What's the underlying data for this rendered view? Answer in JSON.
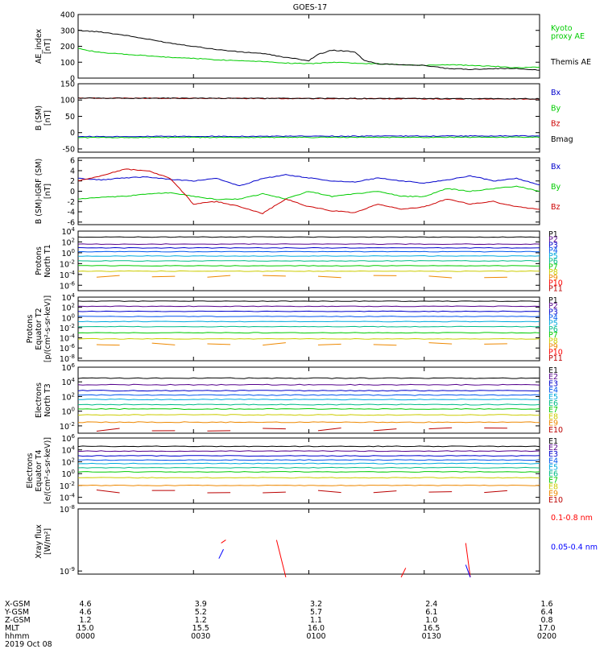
{
  "title": "GOES-17",
  "chart_data": [
    {
      "id": "ae",
      "type": "line",
      "ylabel": "AE_index\n[nT]",
      "yticks": [
        400,
        300,
        200,
        100,
        0
      ],
      "ylim": [
        0,
        400
      ],
      "yscale": "linear",
      "series": [
        {
          "name": "Kyoto\nproxy AE",
          "color": "#00cc00",
          "x": [
            0,
            0.02,
            0.05,
            0.1,
            0.15,
            0.2,
            0.25,
            0.3,
            0.35,
            0.4,
            0.45,
            0.5,
            0.55,
            0.6,
            0.65,
            0.7,
            0.75,
            0.8,
            0.85,
            0.9,
            0.95,
            1.0
          ],
          "values": [
            190,
            175,
            160,
            150,
            140,
            130,
            125,
            115,
            110,
            105,
            95,
            90,
            100,
            95,
            90,
            85,
            80,
            85,
            80,
            75,
            65,
            70
          ]
        },
        {
          "name": "Themis AE",
          "color": "#000000",
          "x": [
            0,
            0.05,
            0.1,
            0.15,
            0.2,
            0.25,
            0.3,
            0.35,
            0.4,
            0.45,
            0.5,
            0.52,
            0.55,
            0.58,
            0.6,
            0.62,
            0.65,
            0.7,
            0.75,
            0.8,
            0.85,
            0.9,
            0.95,
            1.0
          ],
          "values": [
            300,
            290,
            270,
            245,
            220,
            200,
            180,
            165,
            155,
            130,
            110,
            150,
            175,
            170,
            165,
            110,
            90,
            85,
            80,
            60,
            55,
            60,
            60,
            50
          ]
        }
      ]
    },
    {
      "id": "bsm",
      "type": "line",
      "ylabel": "B (SM)\n[nT]",
      "yticks": [
        150,
        100,
        50,
        0,
        -50
      ],
      "ylim": [
        -60,
        150
      ],
      "yscale": "linear",
      "series": [
        {
          "name": "Bx",
          "color": "#0000cc",
          "x": [
            0,
            1
          ],
          "values": [
            -12,
            -10
          ]
        },
        {
          "name": "By",
          "color": "#00cc00",
          "x": [
            0,
            1
          ],
          "values": [
            -15,
            -14
          ]
        },
        {
          "name": "Bz",
          "color": "#cc0000",
          "x": [
            0,
            1
          ],
          "values": [
            106,
            103
          ]
        },
        {
          "name": "Bmag",
          "color": "#000000",
          "x": [
            0,
            1
          ],
          "values": [
            106,
            104
          ]
        }
      ]
    },
    {
      "id": "bdiff",
      "type": "line",
      "ylabel": "B (SM)-IGRF (SM)\n[nT]",
      "yticks": [
        6,
        4,
        2,
        0,
        -2,
        -4,
        -6
      ],
      "ylim": [
        -6.5,
        6.5
      ],
      "yscale": "linear",
      "series": [
        {
          "name": "Bx",
          "color": "#0000cc",
          "x": [
            0,
            0.05,
            0.1,
            0.15,
            0.2,
            0.25,
            0.3,
            0.35,
            0.4,
            0.45,
            0.5,
            0.55,
            0.6,
            0.65,
            0.7,
            0.75,
            0.8,
            0.85,
            0.9,
            0.95,
            1.0
          ],
          "values": [
            2.5,
            2.2,
            2.6,
            2.8,
            2.3,
            2.0,
            2.5,
            1.0,
            2.5,
            3.2,
            2.6,
            2.0,
            1.8,
            2.6,
            2.0,
            1.6,
            2.2,
            3.0,
            2.0,
            2.5,
            1.2
          ]
        },
        {
          "name": "By",
          "color": "#00cc00",
          "x": [
            0,
            0.05,
            0.1,
            0.15,
            0.2,
            0.25,
            0.3,
            0.35,
            0.4,
            0.45,
            0.5,
            0.55,
            0.6,
            0.65,
            0.7,
            0.75,
            0.8,
            0.85,
            0.9,
            0.95,
            1.0
          ],
          "values": [
            -1.5,
            -1.2,
            -1.0,
            -0.5,
            -0.3,
            -1.0,
            -1.6,
            -1.5,
            -0.5,
            -1.5,
            0.0,
            -1.0,
            -0.5,
            0.0,
            -1.0,
            -1.0,
            0.5,
            0.0,
            0.5,
            1.0,
            0.0
          ]
        },
        {
          "name": "Bz",
          "color": "#cc0000",
          "x": [
            0,
            0.05,
            0.1,
            0.15,
            0.2,
            0.25,
            0.3,
            0.35,
            0.4,
            0.45,
            0.5,
            0.55,
            0.6,
            0.65,
            0.7,
            0.75,
            0.8,
            0.85,
            0.9,
            0.95,
            1.0
          ],
          "values": [
            2.0,
            3.0,
            4.3,
            4.0,
            2.5,
            -2.5,
            -2.0,
            -3.0,
            -4.3,
            -1.5,
            -3.0,
            -3.8,
            -4.2,
            -2.5,
            -3.5,
            -3.0,
            -1.5,
            -2.5,
            -2.0,
            -3.0,
            -3.5
          ]
        }
      ]
    },
    {
      "id": "pt1",
      "type": "line",
      "ylabel": "Protons\nNorth T1",
      "ytick_exponents": [
        4,
        2,
        0,
        -2,
        -4,
        -6
      ],
      "ylim_log": [
        -7,
        4
      ],
      "yscale": "log",
      "legend": [
        "P1",
        "P2",
        "P3",
        "P4",
        "P5",
        "P6",
        "P7",
        "P8",
        "P9",
        "P10",
        "P11"
      ],
      "level_exponents": [
        2.9,
        1.6,
        0.9,
        0.2,
        -0.6,
        -1.5,
        -2.4,
        -3.4
      ],
      "series_colors": [
        "#000000",
        "#55008c",
        "#0000cc",
        "#0055ee",
        "#00aadd",
        "#00bb88",
        "#00cc00",
        "#cccc00",
        "#ee8800",
        "#ff0000",
        "#bb0000"
      ]
    },
    {
      "id": "pt2",
      "type": "line",
      "ylabel": "Protons\nEquator T2\n[p/(cm²-s-sr-keV)]",
      "ytick_exponents": [
        4,
        2,
        0,
        -2,
        -4,
        -6,
        -8
      ],
      "ylim_log": [
        -8.5,
        4
      ],
      "yscale": "log",
      "legend": [
        "P1",
        "P2",
        "P3",
        "P4",
        "P5",
        "P6",
        "P7",
        "P8",
        "P9",
        "P10",
        "P11"
      ],
      "level_exponents": [
        3.2,
        2.2,
        1.2,
        0.2,
        -0.8,
        -1.8,
        -3.0,
        -4.2
      ],
      "series_colors": [
        "#000000",
        "#55008c",
        "#0000cc",
        "#0055ee",
        "#00aadd",
        "#00bb88",
        "#00cc00",
        "#cccc00",
        "#ee8800",
        "#ff0000",
        "#bb0000"
      ]
    },
    {
      "id": "et3",
      "type": "line",
      "ylabel": "Electrons\nNorth T3",
      "ytick_exponents": [
        6,
        4,
        2,
        0,
        -2
      ],
      "ylim_log": [
        -3,
        6
      ],
      "yscale": "log",
      "legend": [
        "E1",
        "E2",
        "E3",
        "E4",
        "E5",
        "E6",
        "E7",
        "E8",
        "E9",
        "E10"
      ],
      "level_exponents": [
        4.5,
        3.6,
        2.8,
        2.2,
        1.6,
        0.9,
        0.3,
        -0.5,
        -1.5
      ],
      "series_colors": [
        "#000000",
        "#55008c",
        "#0000cc",
        "#0055ee",
        "#00aadd",
        "#00bb88",
        "#00cc00",
        "#cccc00",
        "#ee8800",
        "#bb0000"
      ]
    },
    {
      "id": "et4",
      "type": "line",
      "ylabel": "Electrons\nEquator T4\n[e/(cm²-s-sr-keV)]",
      "ytick_exponents": [
        6,
        4,
        2,
        0,
        -2,
        -4
      ],
      "ylim_log": [
        -5,
        6
      ],
      "yscale": "log",
      "legend": [
        "E1",
        "E2",
        "E3",
        "E4",
        "E5",
        "E6",
        "E7",
        "E8",
        "E9",
        "E10"
      ],
      "level_exponents": [
        4.6,
        3.8,
        3.0,
        2.3,
        1.7,
        1.0,
        0.3,
        -0.7,
        -2.0
      ],
      "series_colors": [
        "#000000",
        "#55008c",
        "#0000cc",
        "#0055ee",
        "#00aadd",
        "#00bb88",
        "#00cc00",
        "#cccc00",
        "#ee8800",
        "#bb0000"
      ]
    },
    {
      "id": "xray",
      "type": "line",
      "ylabel": "Xray flux\n[W/m²]",
      "ytick_exponents": [
        -8,
        -9
      ],
      "ylim_log": [
        -9.05,
        -8
      ],
      "yscale": "log",
      "series": [
        {
          "name": "0.1-0.8 nm",
          "color": "#ff0000",
          "segments": [
            [
              [
                0.31,
                -8.55
              ],
              [
                0.32,
                -8.5
              ]
            ],
            [
              [
                0.43,
                -8.5
              ],
              [
                0.45,
                -9.1
              ]
            ],
            [
              [
                0.71,
                -8.95
              ],
              [
                0.7,
                -9.1
              ]
            ],
            [
              [
                0.84,
                -8.55
              ],
              [
                0.85,
                -9.1
              ]
            ]
          ]
        },
        {
          "name": "0.05-0.4 nm",
          "color": "#0000ff",
          "segments": [
            [
              [
                0.305,
                -8.8
              ],
              [
                0.315,
                -8.65
              ]
            ],
            [
              [
                0.84,
                -8.9
              ],
              [
                0.85,
                -9.1
              ]
            ]
          ]
        }
      ]
    }
  ],
  "right_labels": {
    "ae": [
      {
        "text": "Kyoto",
        "color": "#00cc00"
      },
      {
        "text": "proxy AE",
        "color": "#00cc00"
      },
      {
        "text": "Themis AE",
        "color": "#000000"
      }
    ],
    "bsm": [
      {
        "text": "Bx",
        "color": "#0000cc"
      },
      {
        "text": "By",
        "color": "#00cc00"
      },
      {
        "text": "Bz",
        "color": "#cc0000"
      },
      {
        "text": "Bmag",
        "color": "#000000"
      }
    ],
    "bdiff": [
      {
        "text": "Bx",
        "color": "#0000cc"
      },
      {
        "text": "By",
        "color": "#00cc00"
      },
      {
        "text": "Bz",
        "color": "#cc0000"
      }
    ],
    "xray": [
      {
        "text": "0.1-0.8 nm",
        "color": "#ff0000"
      },
      {
        "text": "0.05-0.4 nm",
        "color": "#0000ff"
      }
    ]
  },
  "footer": {
    "row_labels": [
      "X-GSM",
      "Y-GSM",
      "Z-GSM",
      "MLT",
      "hhmm",
      "2019 Oct 08"
    ],
    "columns": [
      [
        "4.6",
        "4.6",
        "1.2",
        "15.0",
        "0000"
      ],
      [
        "3.9",
        "5.2",
        "1.2",
        "15.5",
        "0030"
      ],
      [
        "3.2",
        "5.7",
        "1.1",
        "16.0",
        "0100"
      ],
      [
        "2.4",
        "6.1",
        "1.0",
        "16.5",
        "0130"
      ],
      [
        "1.6",
        "6.4",
        "0.8",
        "17.0",
        "0200"
      ]
    ]
  }
}
